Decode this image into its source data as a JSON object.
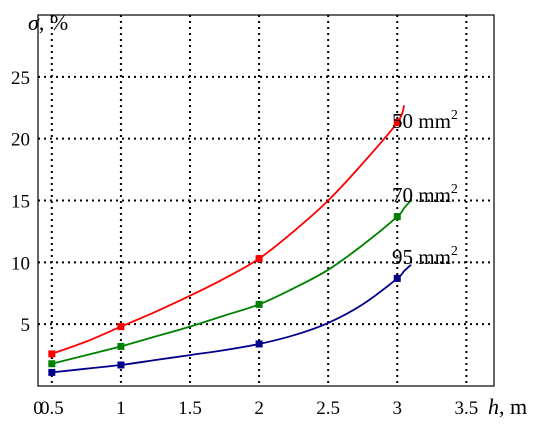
{
  "chart_data": {
    "type": "line",
    "ylabel_symbol": "σ",
    "ylabel_unit": ", %",
    "xlabel_symbol": "h",
    "xlabel_unit": ", m",
    "xlim": [
      0.4,
      3.7
    ],
    "ylim": [
      0,
      30
    ],
    "xticks": [
      0.5,
      1,
      1.5,
      2,
      2.5,
      3,
      3.5
    ],
    "xtick_labels": [
      "0.5",
      "1",
      "1.5",
      "2",
      "2.5",
      "3",
      "3.5"
    ],
    "yticks": [
      5,
      10,
      15,
      20,
      25
    ],
    "ytick_labels": [
      "5",
      "10",
      "15",
      "20",
      "25"
    ],
    "origin_label": "0",
    "grid": true,
    "series": [
      {
        "name": "50 mm",
        "superscript": "2",
        "color": "#ff0000",
        "x": [
          0.5,
          1,
          2,
          3
        ],
        "y": [
          2.6,
          4.8,
          10.3,
          21.3
        ],
        "curve_x": [
          0.5,
          0.75,
          1.0,
          1.25,
          1.5,
          1.75,
          2.0,
          2.25,
          2.5,
          2.75,
          3.0,
          3.05
        ],
        "curve_y": [
          2.6,
          3.6,
          4.8,
          6.0,
          7.3,
          8.7,
          10.3,
          12.5,
          15.0,
          18.0,
          21.3,
          22.7
        ]
      },
      {
        "name": "70 mm",
        "superscript": "2",
        "color": "#008000",
        "x": [
          0.5,
          1,
          2,
          3
        ],
        "y": [
          1.8,
          3.2,
          6.6,
          13.7
        ],
        "curve_x": [
          0.5,
          0.75,
          1.0,
          1.25,
          1.5,
          1.75,
          2.0,
          2.25,
          2.5,
          2.75,
          3.0,
          3.05,
          3.1
        ],
        "curve_y": [
          1.8,
          2.5,
          3.2,
          4.0,
          4.8,
          5.7,
          6.6,
          7.9,
          9.4,
          11.4,
          13.7,
          14.4,
          15.0
        ]
      },
      {
        "name": "95 mm",
        "superscript": "2",
        "color": "#00008b",
        "x": [
          0.5,
          1,
          2,
          3
        ],
        "y": [
          1.1,
          1.7,
          3.4,
          8.7
        ],
        "curve_x": [
          0.5,
          0.75,
          1.0,
          1.25,
          1.5,
          1.75,
          2.0,
          2.25,
          2.5,
          2.75,
          3.0,
          3.05,
          3.1
        ],
        "curve_y": [
          1.1,
          1.4,
          1.7,
          2.1,
          2.5,
          2.9,
          3.4,
          4.1,
          5.1,
          6.6,
          8.7,
          9.3,
          9.8
        ]
      }
    ]
  }
}
